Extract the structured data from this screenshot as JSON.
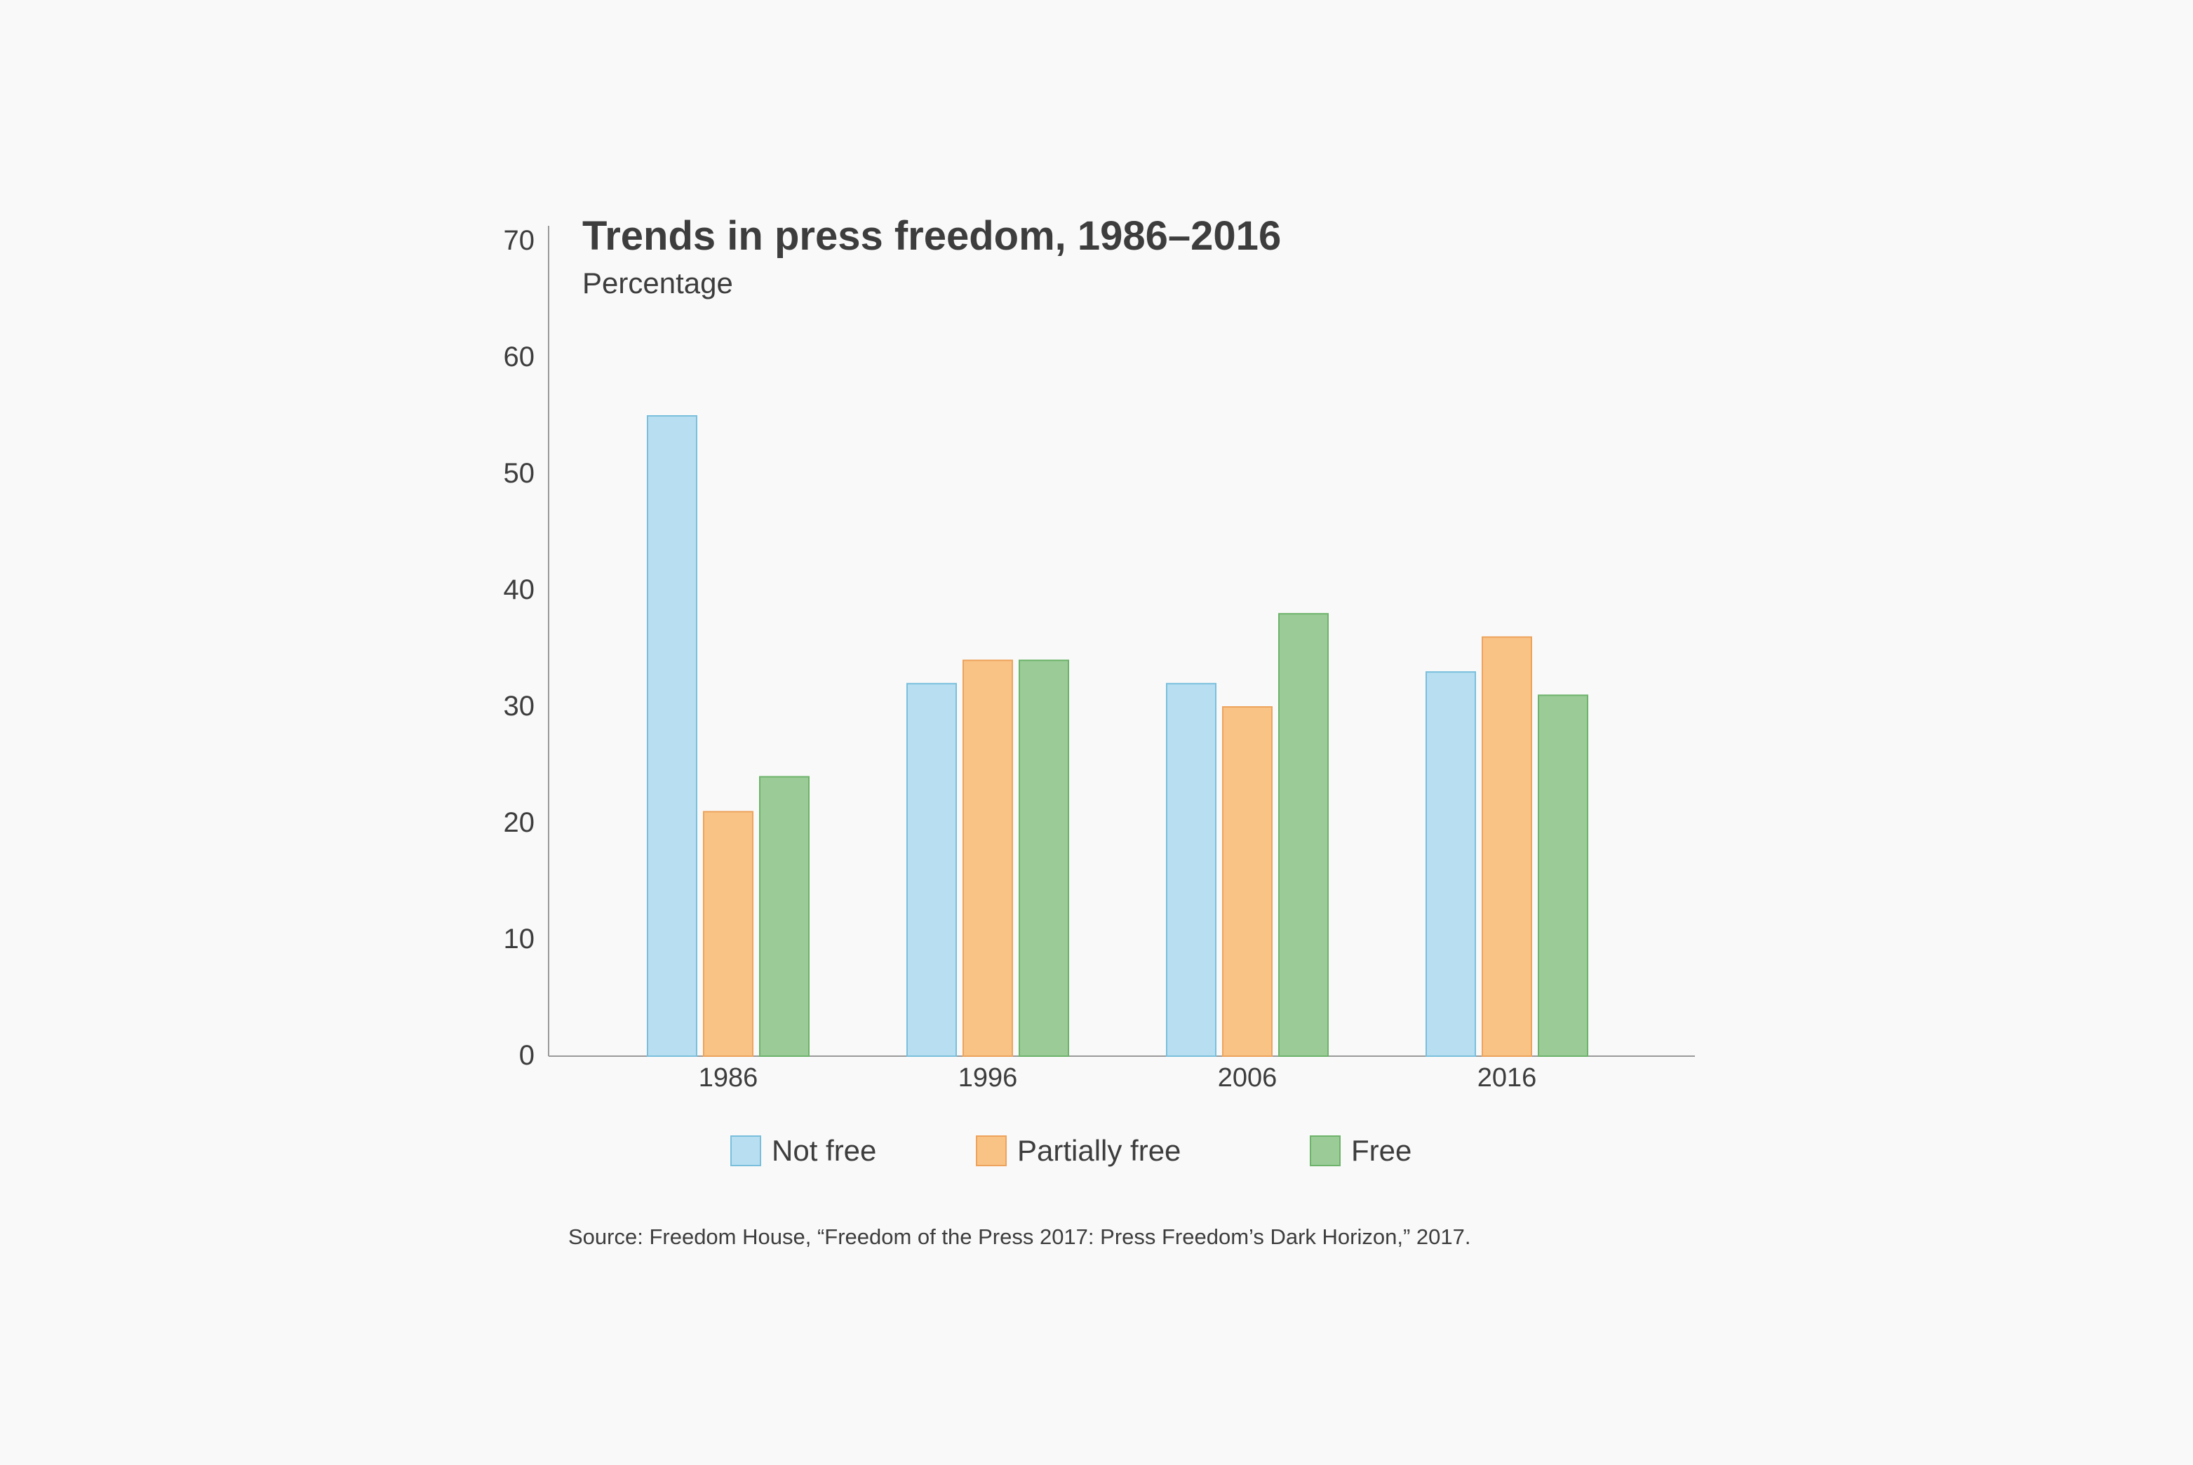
{
  "chart_data": {
    "type": "bar",
    "title": "Trends in press freedom, 1986–2016",
    "subtitle": "Percentage",
    "xlabel": "",
    "ylabel": "",
    "ylim": [
      0,
      70
    ],
    "yticks": [
      0,
      10,
      20,
      30,
      40,
      50,
      60,
      70
    ],
    "categories": [
      "1986",
      "1996",
      "2006",
      "2016"
    ],
    "series": [
      {
        "name": "Not free",
        "values": [
          55,
          32,
          32,
          33
        ],
        "color": "#b8dff1",
        "stroke": "#79bfdc"
      },
      {
        "name": "Partially free",
        "values": [
          21,
          34,
          30,
          36
        ],
        "color": "#f9c386",
        "stroke": "#eda35c"
      },
      {
        "name": "Free",
        "values": [
          24,
          34,
          38,
          31
        ],
        "color": "#9bcc98",
        "stroke": "#6db36a"
      }
    ],
    "grid": false,
    "legend": "bottom",
    "source": "Source: Freedom House, “Freedom of the Press 2017: Press Freedom’s Dark Horizon,” 2017.",
    "colors": {
      "text": "#3d3d3d",
      "axis": "#9a9a9a",
      "background": "#f9f9f9"
    }
  }
}
